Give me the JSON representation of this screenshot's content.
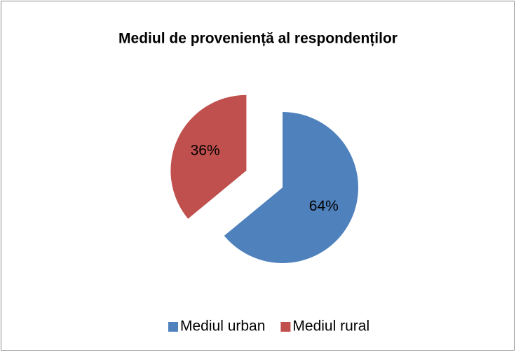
{
  "chart_data": {
    "type": "pie",
    "title": "Mediul de proveniență al respondenților",
    "categories": [
      "Mediul urban",
      "Mediul rural"
    ],
    "values": [
      64,
      36
    ],
    "value_labels": [
      "64%",
      "36%"
    ],
    "colors": [
      "#4f81bd",
      "#c0504d"
    ],
    "exploded": [
      false,
      true
    ],
    "legend": "bottom"
  }
}
